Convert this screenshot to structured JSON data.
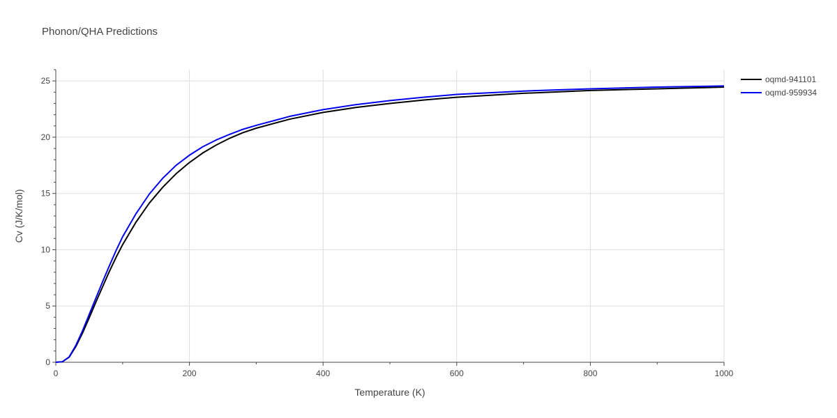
{
  "chart_data": {
    "type": "line",
    "title": "Phonon/QHA Predictions",
    "xlabel": "Temperature (K)",
    "ylabel": "Cv (J/K/mol)",
    "xlim": [
      0,
      1000
    ],
    "ylim": [
      0,
      26
    ],
    "xticks": [
      0,
      200,
      400,
      600,
      800,
      1000
    ],
    "yticks": [
      0,
      5,
      10,
      15,
      20,
      25
    ],
    "grid": true,
    "legend": "top-right",
    "series": [
      {
        "name": "oqmd-941101",
        "color": "#000000",
        "x": [
          0,
          10,
          20,
          30,
          40,
          50,
          60,
          70,
          80,
          90,
          100,
          120,
          140,
          160,
          180,
          200,
          220,
          240,
          260,
          280,
          300,
          350,
          400,
          450,
          500,
          550,
          600,
          700,
          800,
          900,
          1000
        ],
        "y": [
          0,
          0.05,
          0.45,
          1.4,
          2.6,
          3.95,
          5.35,
          6.7,
          8.05,
          9.3,
          10.45,
          12.45,
          14.15,
          15.55,
          16.75,
          17.75,
          18.6,
          19.3,
          19.9,
          20.4,
          20.8,
          21.6,
          22.2,
          22.65,
          23.0,
          23.3,
          23.55,
          23.9,
          24.15,
          24.3,
          24.45
        ]
      },
      {
        "name": "oqmd-959934",
        "color": "#0000ee",
        "x": [
          0,
          10,
          20,
          30,
          40,
          50,
          60,
          70,
          80,
          90,
          100,
          120,
          140,
          160,
          180,
          200,
          220,
          240,
          260,
          280,
          300,
          350,
          400,
          450,
          500,
          550,
          600,
          700,
          800,
          900,
          1000
        ],
        "y": [
          0,
          0.05,
          0.48,
          1.5,
          2.8,
          4.25,
          5.7,
          7.15,
          8.55,
          9.9,
          11.15,
          13.2,
          14.95,
          16.35,
          17.5,
          18.4,
          19.15,
          19.75,
          20.25,
          20.7,
          21.05,
          21.85,
          22.45,
          22.9,
          23.25,
          23.55,
          23.8,
          24.1,
          24.3,
          24.45,
          24.55
        ]
      }
    ]
  }
}
